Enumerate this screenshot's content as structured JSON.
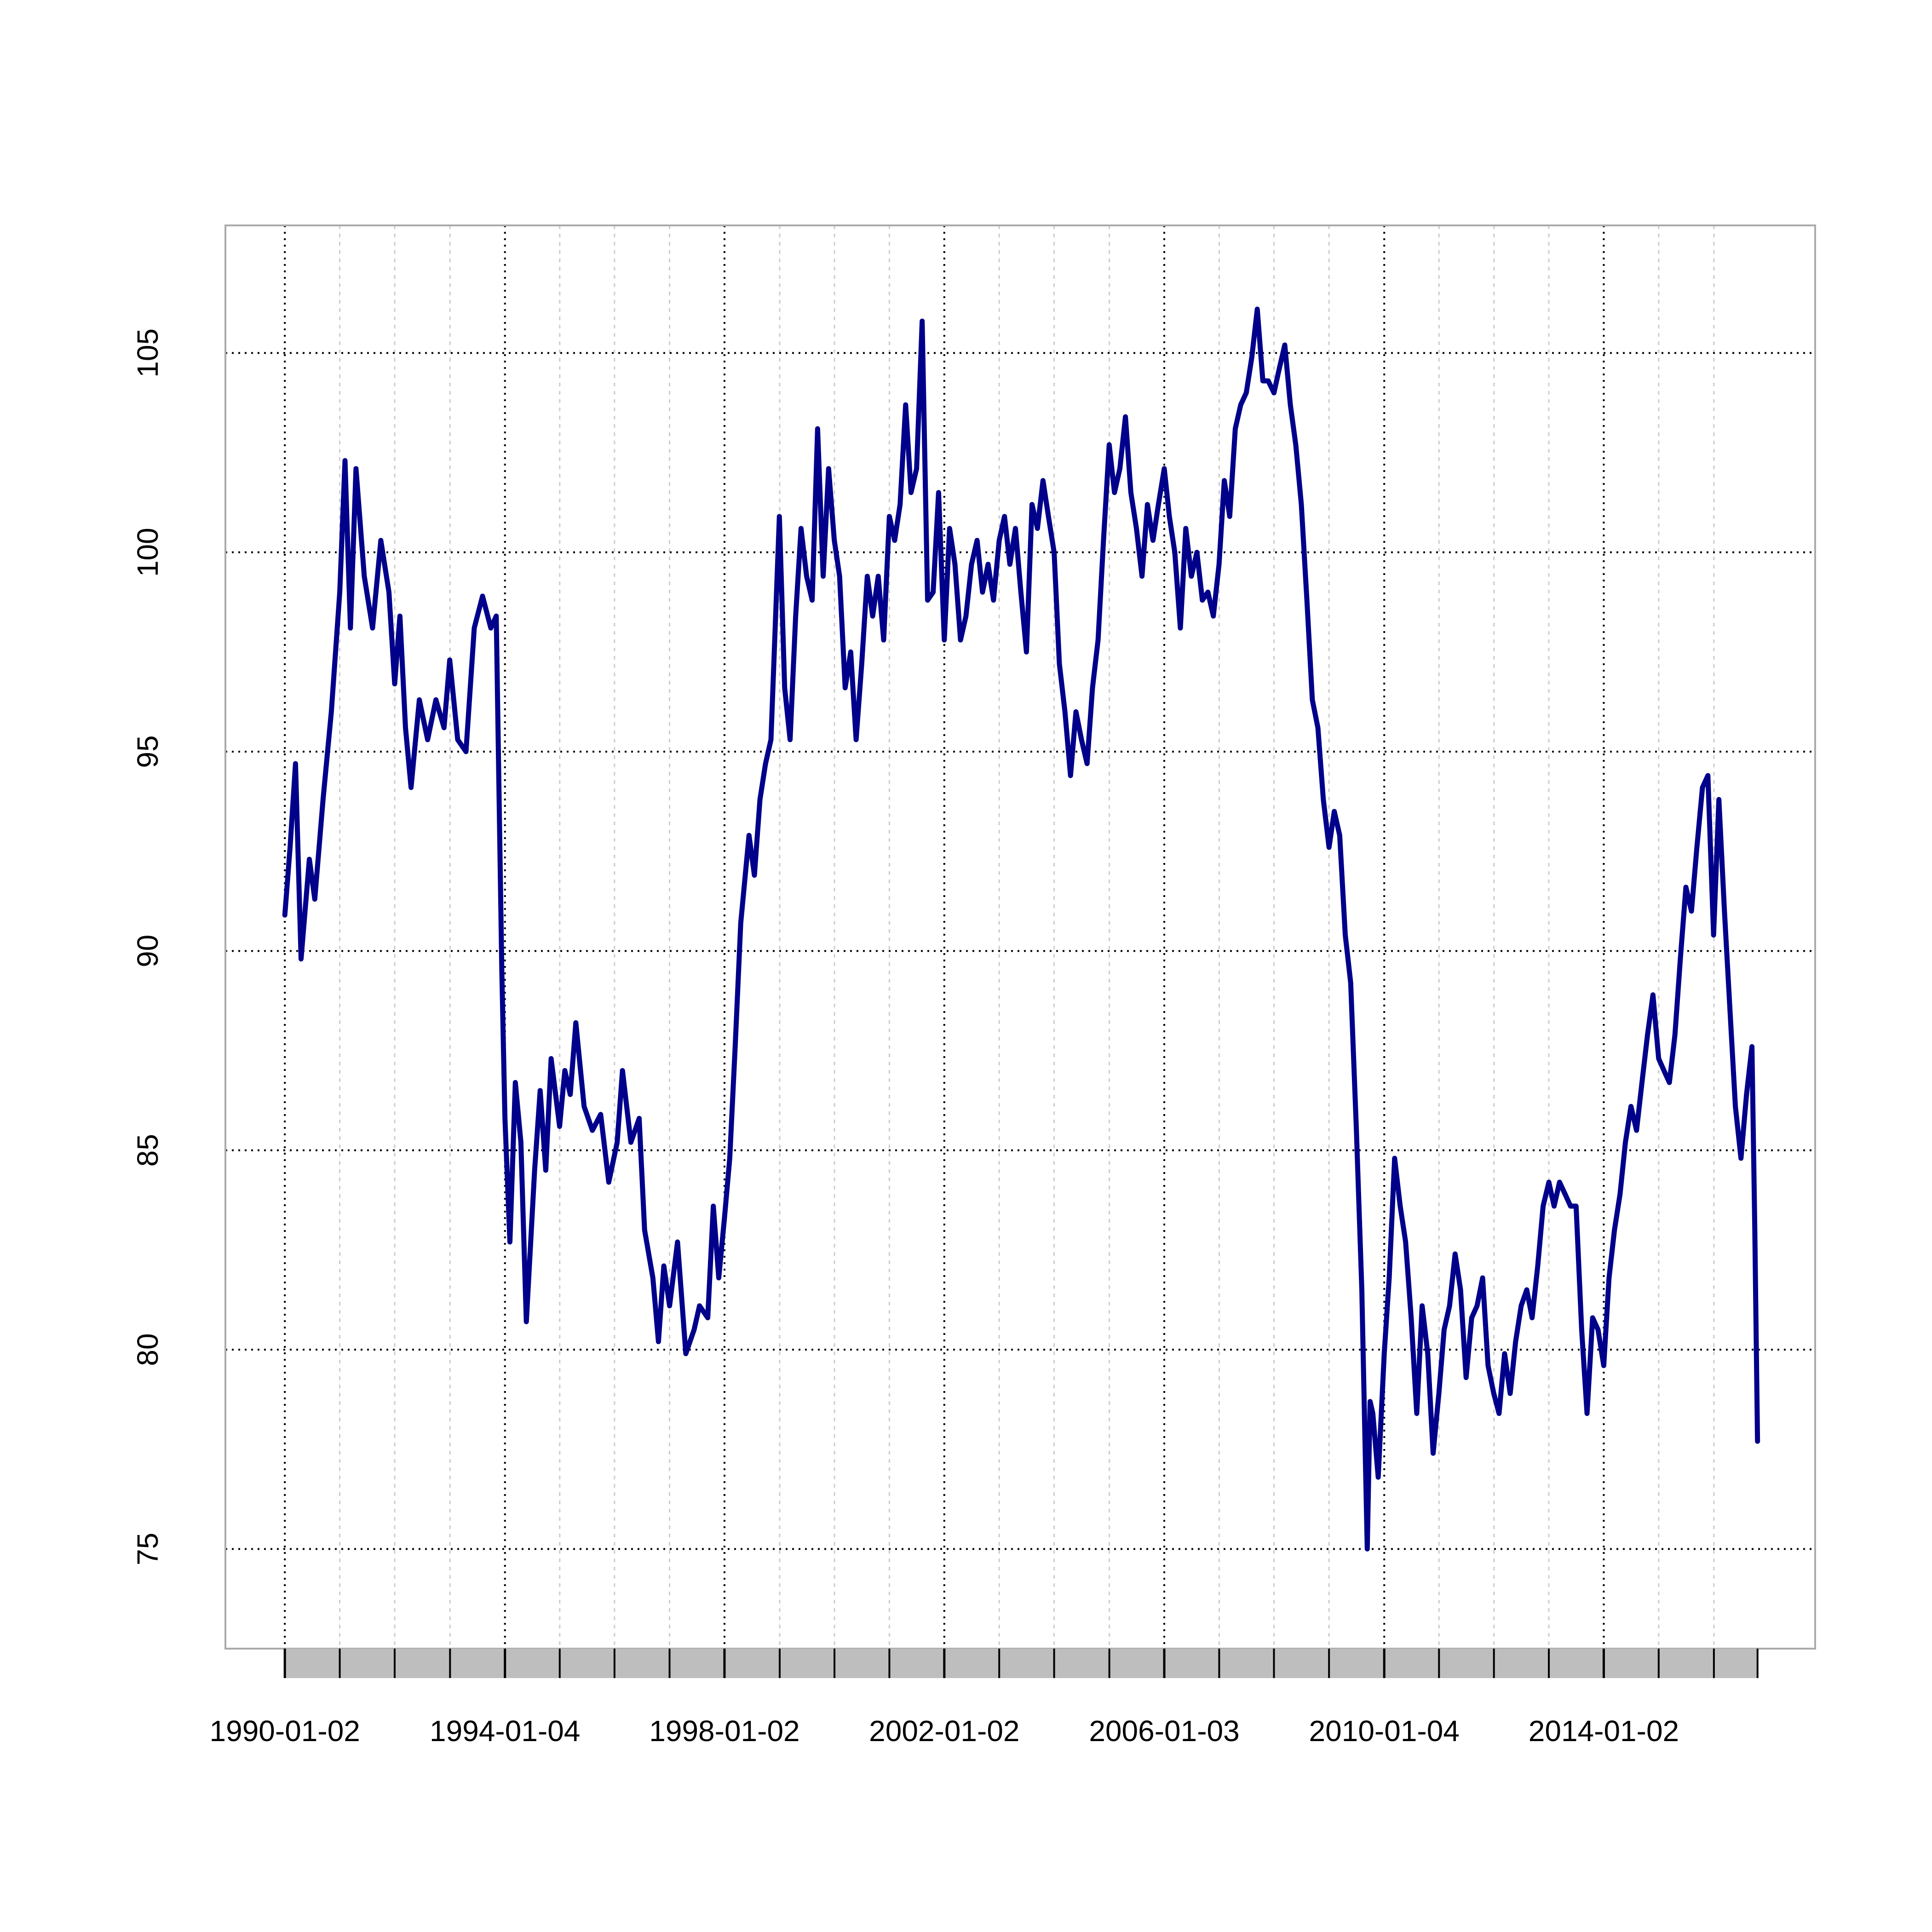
{
  "chart_data": {
    "type": "line",
    "x": [
      "1990-01-02",
      "1990-02-06",
      "1990-03-14",
      "1990-04-20",
      "1990-06-14",
      "1990-07-20",
      "1990-09-13",
      "1990-11-07",
      "1991-01-02",
      "1991-02-06",
      "1991-03-14",
      "1991-04-20",
      "1991-06-14",
      "1991-08-08",
      "1991-10-02",
      "1991-11-25",
      "1992-01-02",
      "1992-02-06",
      "1992-03-14",
      "1992-04-20",
      "1992-06-14",
      "1992-08-08",
      "1992-10-02",
      "1992-11-25",
      "1993-01-02",
      "1993-02-24",
      "1993-04-20",
      "1993-06-14",
      "1993-08-08",
      "1993-10-02",
      "1993-11-07",
      "1993-12-14",
      "1994-01-04",
      "1994-02-06",
      "1994-03-14",
      "1994-04-20",
      "1994-05-26",
      "1994-07-20",
      "1994-08-26",
      "1994-10-02",
      "1994-11-07",
      "1995-01-02",
      "1995-02-06",
      "1995-03-14",
      "1995-04-20",
      "1995-06-14",
      "1995-08-08",
      "1995-10-02",
      "1995-11-25",
      "1996-01-20",
      "1996-02-24",
      "1996-04-20",
      "1996-06-14",
      "1996-07-20",
      "1996-09-13",
      "1996-10-20",
      "1996-11-25",
      "1997-01-02",
      "1997-02-24",
      "1997-04-20",
      "1997-06-14",
      "1997-07-20",
      "1997-09-13",
      "1997-10-20",
      "1997-11-25",
      "1998-01-02",
      "1998-02-06",
      "1998-03-14",
      "1998-04-20",
      "1998-06-14",
      "1998-07-20",
      "1998-08-26",
      "1998-10-02",
      "1998-11-07",
      "1998-12-14",
      "1999-01-02",
      "1999-02-06",
      "1999-03-14",
      "1999-04-20",
      "1999-05-26",
      "1999-07-02",
      "1999-08-08",
      "1999-09-13",
      "1999-10-20",
      "1999-11-25",
      "2000-01-02",
      "2000-02-06",
      "2000-03-14",
      "2000-04-20",
      "2000-05-26",
      "2000-07-02",
      "2000-08-08",
      "2000-09-13",
      "2000-10-20",
      "2000-11-25",
      "2001-01-02",
      "2001-02-06",
      "2001-03-14",
      "2001-04-20",
      "2001-05-26",
      "2001-07-02",
      "2001-08-08",
      "2001-09-13",
      "2001-10-20",
      "2001-11-25",
      "2002-01-02",
      "2002-02-06",
      "2002-03-14",
      "2002-04-20",
      "2002-05-26",
      "2002-07-02",
      "2002-08-08",
      "2002-09-13",
      "2002-10-20",
      "2002-11-25",
      "2003-01-02",
      "2003-02-06",
      "2003-03-14",
      "2003-04-20",
      "2003-05-26",
      "2003-07-02",
      "2003-08-08",
      "2003-09-13",
      "2003-10-20",
      "2003-11-25",
      "2004-01-02",
      "2004-02-06",
      "2004-03-14",
      "2004-04-20",
      "2004-05-26",
      "2004-07-02",
      "2004-08-08",
      "2004-09-13",
      "2004-10-20",
      "2004-11-25",
      "2005-01-02",
      "2005-02-06",
      "2005-03-14",
      "2005-04-20",
      "2005-05-26",
      "2005-07-02",
      "2005-08-08",
      "2005-09-13",
      "2005-10-20",
      "2005-11-25",
      "2006-01-03",
      "2006-02-06",
      "2006-03-14",
      "2006-04-20",
      "2006-05-26",
      "2006-07-02",
      "2006-08-08",
      "2006-09-13",
      "2006-10-20",
      "2006-11-25",
      "2007-01-02",
      "2007-02-06",
      "2007-03-14",
      "2007-04-20",
      "2007-05-26",
      "2007-07-02",
      "2007-08-08",
      "2007-09-13",
      "2007-10-20",
      "2007-11-25",
      "2008-01-02",
      "2008-02-06",
      "2008-03-14",
      "2008-04-20",
      "2008-05-26",
      "2008-07-02",
      "2008-08-08",
      "2008-09-13",
      "2008-10-20",
      "2008-11-25",
      "2009-01-02",
      "2009-02-06",
      "2009-03-14",
      "2009-04-20",
      "2009-05-26",
      "2009-07-02",
      "2009-08-08",
      "2009-09-13",
      "2009-10-02",
      "2009-10-20",
      "2009-11-25",
      "2010-01-04",
      "2010-02-06",
      "2010-03-14",
      "2010-04-20",
      "2010-05-26",
      "2010-07-02",
      "2010-08-08",
      "2010-09-13",
      "2010-10-20",
      "2010-11-25",
      "2011-01-02",
      "2011-02-06",
      "2011-03-14",
      "2011-04-20",
      "2011-05-26",
      "2011-07-02",
      "2011-08-08",
      "2011-09-13",
      "2011-10-20",
      "2011-11-25",
      "2012-01-02",
      "2012-02-06",
      "2012-03-14",
      "2012-04-20",
      "2012-05-26",
      "2012-07-02",
      "2012-08-08",
      "2012-09-13",
      "2012-10-20",
      "2012-11-25",
      "2013-01-02",
      "2013-02-06",
      "2013-03-14",
      "2013-04-20",
      "2013-05-26",
      "2013-07-02",
      "2013-08-08",
      "2013-09-13",
      "2013-10-20",
      "2013-11-25",
      "2014-01-02",
      "2014-02-06",
      "2014-03-14",
      "2014-04-20",
      "2014-05-26",
      "2014-07-02",
      "2014-08-08",
      "2014-09-13",
      "2014-10-20",
      "2014-11-25",
      "2015-01-02",
      "2015-02-06",
      "2015-03-14",
      "2015-04-20",
      "2015-05-26",
      "2015-07-02",
      "2015-08-08",
      "2015-09-13",
      "2015-10-20",
      "2015-11-25",
      "2016-01-02",
      "2016-02-06",
      "2016-03-14",
      "2016-04-20",
      "2016-05-26",
      "2016-07-02",
      "2016-08-08",
      "2016-09-13",
      "2016-10-02",
      "2016-10-20"
    ],
    "values": [
      90.9,
      92.6,
      94.7,
      89.8,
      92.3,
      91.3,
      93.8,
      96.0,
      99.0,
      102.3,
      98.1,
      102.1,
      99.4,
      98.1,
      100.3,
      99.0,
      96.7,
      98.4,
      95.6,
      94.1,
      96.3,
      95.3,
      96.3,
      95.6,
      97.3,
      95.3,
      95.0,
      98.1,
      98.9,
      98.1,
      98.4,
      89.5,
      85.8,
      82.7,
      86.7,
      85.2,
      80.7,
      84.5,
      86.5,
      84.5,
      87.3,
      85.6,
      87.0,
      86.4,
      88.2,
      86.1,
      85.5,
      85.9,
      84.2,
      85.2,
      87.0,
      85.2,
      85.8,
      83.0,
      81.8,
      80.2,
      82.1,
      81.1,
      82.7,
      79.9,
      80.5,
      81.1,
      80.8,
      83.6,
      81.8,
      83.3,
      84.8,
      87.6,
      90.7,
      92.9,
      91.9,
      93.8,
      94.7,
      95.3,
      99.0,
      100.9,
      96.6,
      95.3,
      98.4,
      100.6,
      99.4,
      98.8,
      103.1,
      99.4,
      102.1,
      100.3,
      99.4,
      96.6,
      97.5,
      95.3,
      97.2,
      99.4,
      98.4,
      99.4,
      97.8,
      100.9,
      100.3,
      101.2,
      103.7,
      101.5,
      102.1,
      105.8,
      98.8,
      99.0,
      101.5,
      97.8,
      100.6,
      99.7,
      97.8,
      98.4,
      99.7,
      100.3,
      99.0,
      99.7,
      98.8,
      100.3,
      100.9,
      99.7,
      100.6,
      99.0,
      97.5,
      101.2,
      100.6,
      101.8,
      100.9,
      100.0,
      97.2,
      96.0,
      94.4,
      96.0,
      95.3,
      94.7,
      96.6,
      97.8,
      100.3,
      102.7,
      101.5,
      102.1,
      103.4,
      101.5,
      100.6,
      99.4,
      101.2,
      100.3,
      101.2,
      102.1,
      100.9,
      100.0,
      98.1,
      100.6,
      99.4,
      100.0,
      98.8,
      99.0,
      98.4,
      99.7,
      101.8,
      100.9,
      103.1,
      103.7,
      104.0,
      104.9,
      106.1,
      104.3,
      104.3,
      104.0,
      104.6,
      105.2,
      103.7,
      102.7,
      101.2,
      98.8,
      96.3,
      95.6,
      93.8,
      92.6,
      93.5,
      92.9,
      90.4,
      89.2,
      85.6,
      81.5,
      75.0,
      78.7,
      78.4,
      76.8,
      79.9,
      81.8,
      84.8,
      83.6,
      82.7,
      80.8,
      78.4,
      81.1,
      79.9,
      77.4,
      78.9,
      80.5,
      81.1,
      82.4,
      81.5,
      79.3,
      80.8,
      81.1,
      81.8,
      79.6,
      78.9,
      78.4,
      79.9,
      78.9,
      80.2,
      81.1,
      81.5,
      80.8,
      82.1,
      83.6,
      84.2,
      83.6,
      84.2,
      83.9,
      83.6,
      83.6,
      80.5,
      78.4,
      80.8,
      80.5,
      79.6,
      81.8,
      83.0,
      83.9,
      85.2,
      86.1,
      85.5,
      86.7,
      87.9,
      88.9,
      87.3,
      87.0,
      86.7,
      87.9,
      89.8,
      91.6,
      91.0,
      92.6,
      94.1,
      94.4,
      90.4,
      93.8,
      91.0,
      88.5,
      86.1,
      84.8,
      86.4,
      87.6,
      83.0,
      77.7
    ],
    "color": "#00008b",
    "xlim": [
      "1988-12-03",
      "2017-11-07"
    ],
    "xticks": [
      "1990-01-02",
      "1994-01-04",
      "1998-01-02",
      "2002-01-02",
      "2006-01-03",
      "2010-01-04",
      "2014-01-02"
    ],
    "minor_xticks": [
      "1991-01-02",
      "1992-01-02",
      "1993-01-04",
      "1995-01-03",
      "1996-01-02",
      "1997-01-02",
      "1999-01-04",
      "2000-01-03",
      "2001-01-02",
      "2003-01-02",
      "2004-01-02",
      "2005-01-03",
      "2007-01-03",
      "2008-01-02",
      "2009-01-02",
      "2011-01-03",
      "2012-01-03",
      "2013-01-02",
      "2015-01-02",
      "2016-01-04"
    ],
    "ylim": [
      72.5,
      108.2
    ],
    "yticks": [
      75,
      80,
      85,
      90,
      95,
      100,
      105
    ],
    "grid": true
  }
}
